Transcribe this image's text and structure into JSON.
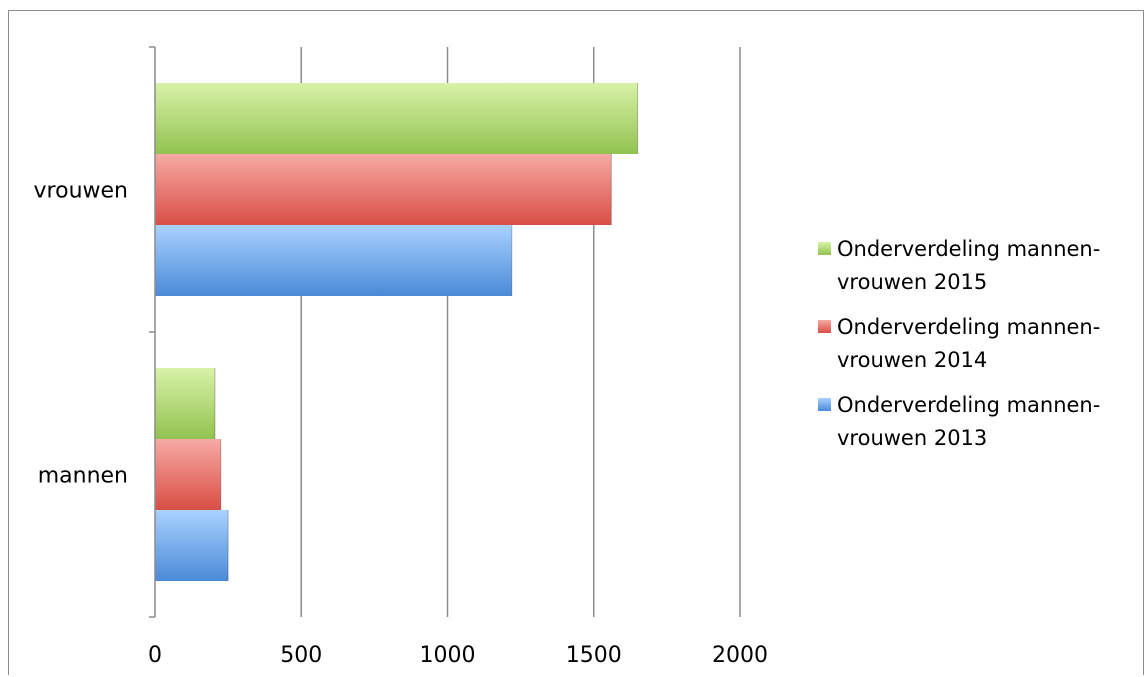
{
  "chart_data": {
    "type": "bar",
    "orientation": "horizontal",
    "categories": [
      "mannen",
      "vrouwen"
    ],
    "series": [
      {
        "name": "Onderverdeling mannen-vrouwen 2013",
        "values": [
          250,
          1220
        ],
        "color": "#5b9bdc"
      },
      {
        "name": "Onderverdeling mannen-vrouwen 2014",
        "values": [
          225,
          1560
        ],
        "color": "#e0625a"
      },
      {
        "name": "Onderverdeling mannen-vrouwen 2015",
        "values": [
          205,
          1650
        ],
        "color": "#a6d063"
      }
    ],
    "legend_order": [
      2,
      1,
      0
    ],
    "legend_lines": [
      [
        "Onderverdeling mannen-",
        "vrouwen 2015"
      ],
      [
        "Onderverdeling mannen-",
        "vrouwen 2014"
      ],
      [
        "Onderverdeling mannen-",
        "vrouwen 2013"
      ]
    ],
    "xlim": [
      0,
      2000
    ],
    "xticks": [
      "0",
      "500",
      "1000",
      "1500",
      "2000"
    ],
    "title": "",
    "xlabel": "",
    "ylabel": "",
    "grid": true,
    "legend_position": "right"
  }
}
